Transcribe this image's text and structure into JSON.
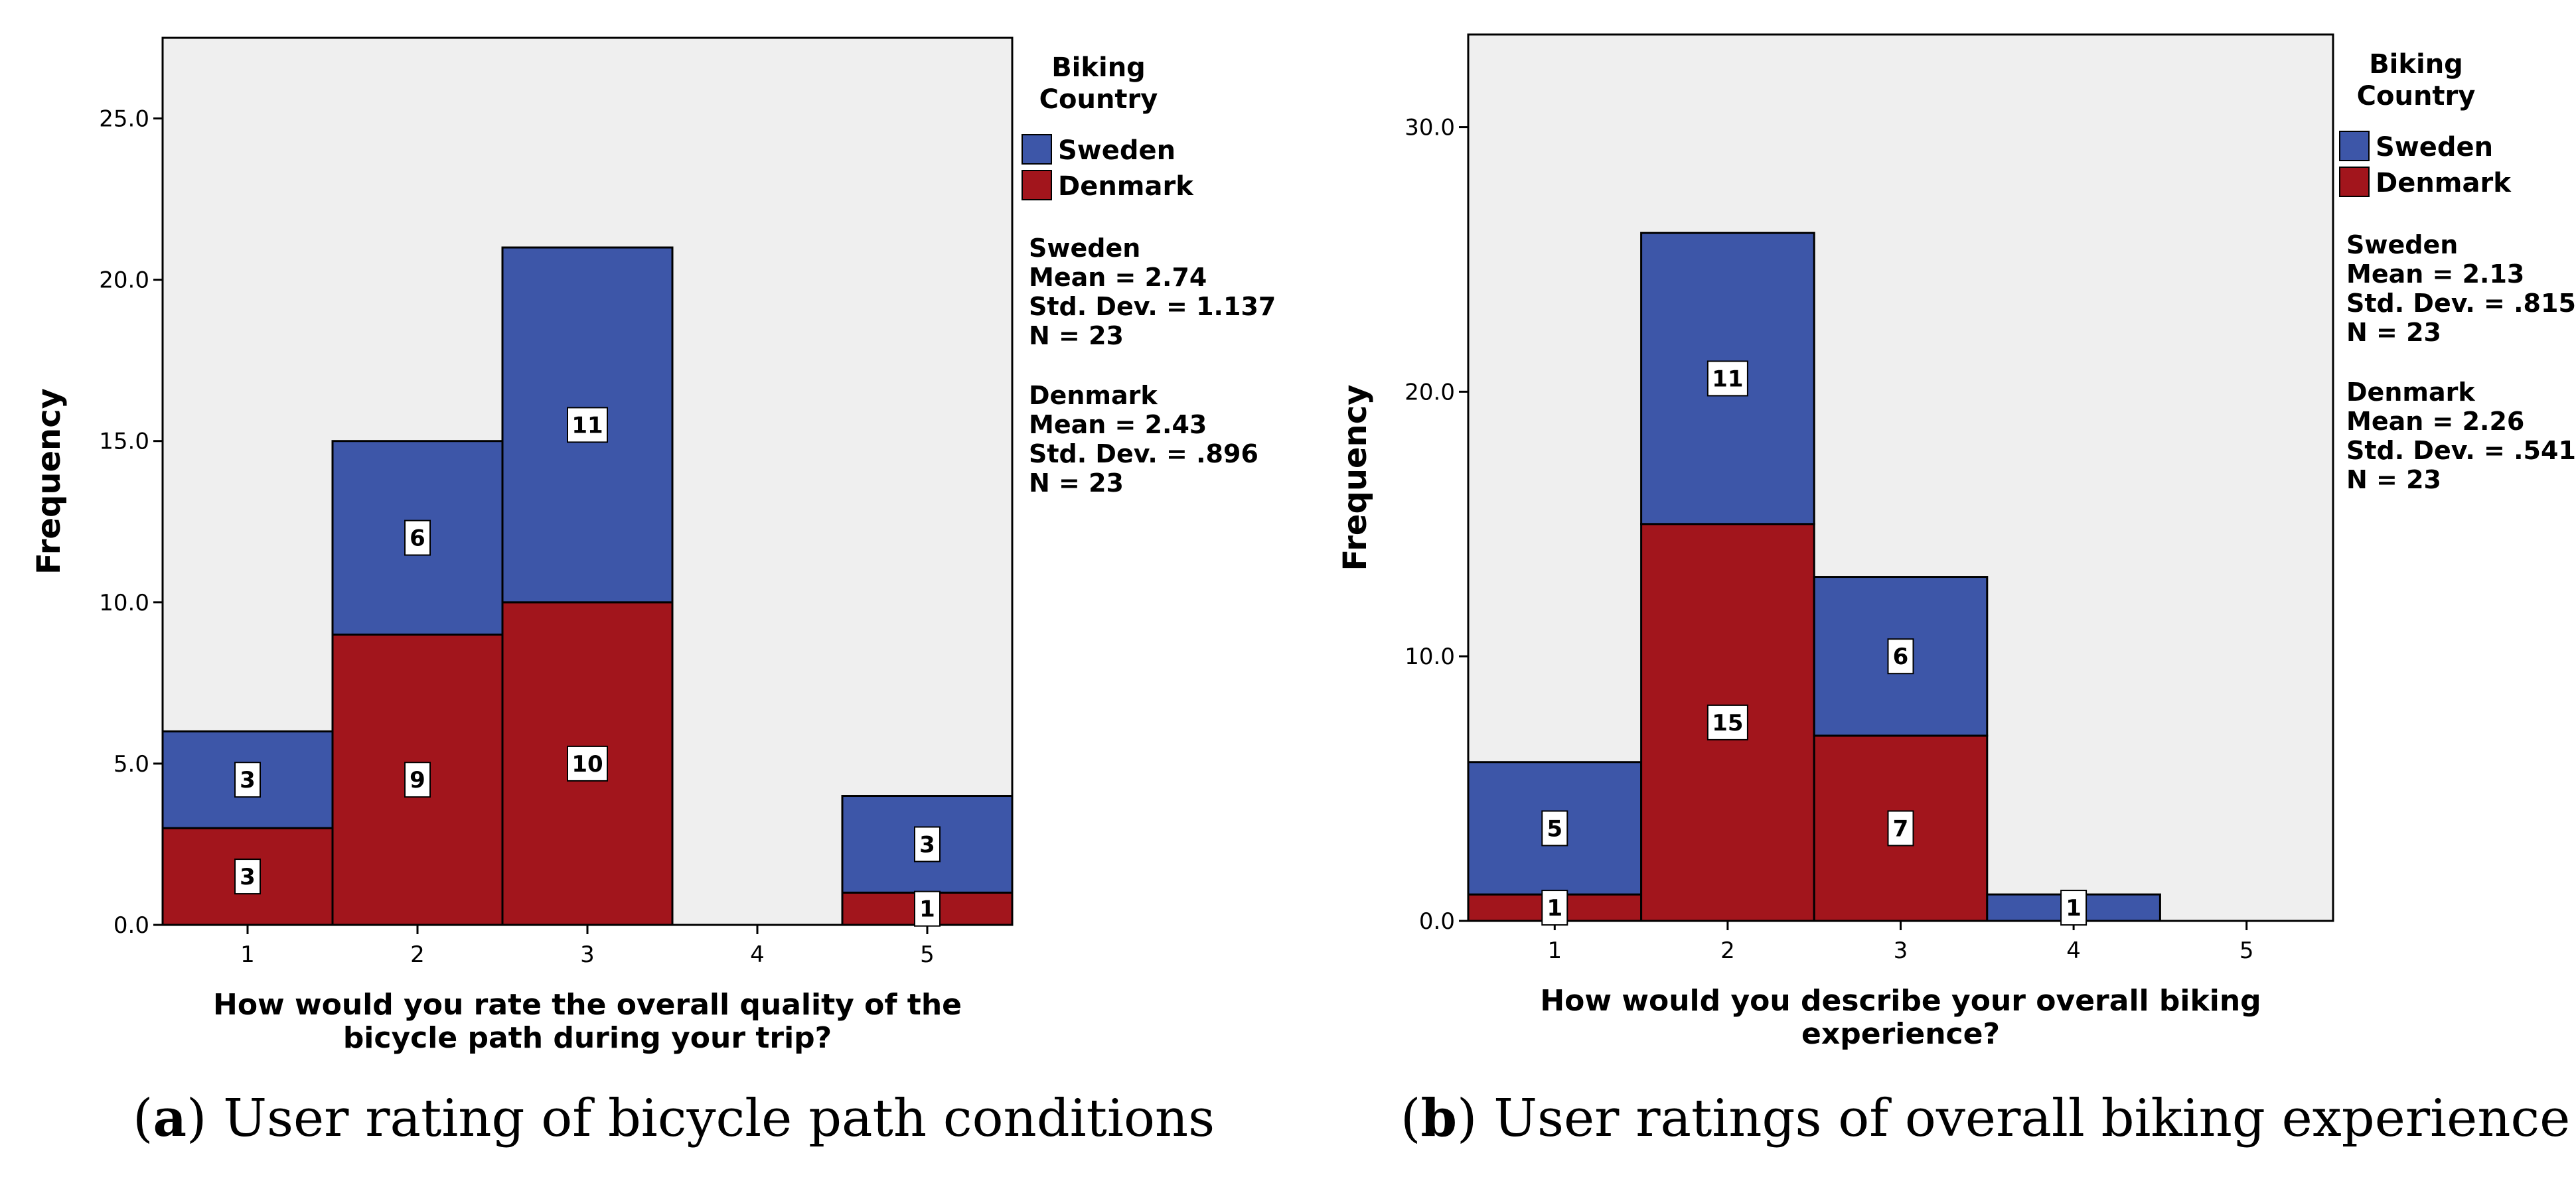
{
  "colors": {
    "sweden": "#3d56a8",
    "denmark": "#a2151c",
    "plot_bg": "#efefef"
  },
  "chart_data": [
    {
      "type": "bar",
      "stacked": true,
      "categories": [
        "1",
        "2",
        "3",
        "4",
        "5"
      ],
      "series": [
        {
          "name": "Denmark",
          "values": [
            3,
            9,
            10,
            0,
            1
          ]
        },
        {
          "name": "Sweden",
          "values": [
            3,
            6,
            11,
            0,
            3
          ]
        }
      ],
      "ylim": [
        0,
        27.5
      ],
      "yticks": [
        "0.0",
        "5.0",
        "10.0",
        "15.0",
        "20.0",
        "25.0"
      ],
      "ytick_values": [
        0,
        5,
        10,
        15,
        20,
        25
      ],
      "ylabel": "Frequency",
      "xlabel_lines": [
        "How would you rate the overall quality of the",
        "bicycle path during your trip?"
      ],
      "legend_title_lines": [
        "Biking",
        "Country"
      ],
      "legend": [
        "Sweden",
        "Denmark"
      ],
      "stats": [
        {
          "group": "Sweden",
          "mean": "Mean = 2.74",
          "sd": "Std. Dev. = 1.137",
          "n": "N = 23"
        },
        {
          "group": "Denmark",
          "mean": "Mean = 2.43",
          "sd": "Std. Dev. = .896",
          "n": "N = 23"
        }
      ],
      "caption_tag": "a",
      "caption_text": ") User rating of bicycle path conditions"
    },
    {
      "type": "bar",
      "stacked": true,
      "categories": [
        "1",
        "2",
        "3",
        "4",
        "5"
      ],
      "series": [
        {
          "name": "Denmark",
          "values": [
            1,
            15,
            7,
            0,
            0
          ]
        },
        {
          "name": "Sweden",
          "values": [
            5,
            11,
            6,
            1,
            0
          ]
        }
      ],
      "ylim": [
        0,
        33.5
      ],
      "yticks": [
        "0.0",
        "10.0",
        "20.0",
        "30.0"
      ],
      "ytick_values": [
        0,
        10,
        20,
        30
      ],
      "ylabel": "Frequency",
      "xlabel_lines": [
        "How would you describe your overall biking",
        "experience?"
      ],
      "legend_title_lines": [
        "Biking",
        "Country"
      ],
      "legend": [
        "Sweden",
        "Denmark"
      ],
      "stats": [
        {
          "group": "Sweden",
          "mean": "Mean = 2.13",
          "sd": "Std. Dev. = .815",
          "n": "N = 23"
        },
        {
          "group": "Denmark",
          "mean": "Mean = 2.26",
          "sd": "Std. Dev. = .541",
          "n": "N = 23"
        }
      ],
      "caption_tag": "b",
      "caption_text": ") User ratings of overall biking experience"
    }
  ]
}
